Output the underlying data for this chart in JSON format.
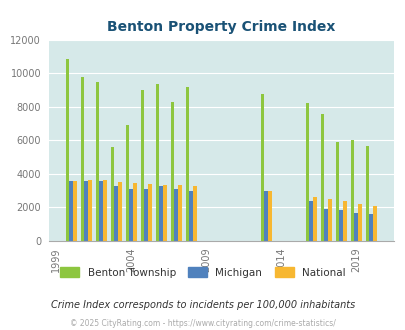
{
  "title": "Benton Property Crime Index",
  "title_color": "#1a5276",
  "subtitle": "Crime Index corresponds to incidents per 100,000 inhabitants",
  "footer": "© 2025 CityRating.com - https://www.cityrating.com/crime-statistics/",
  "years": [
    2000,
    2001,
    2002,
    2003,
    2004,
    2005,
    2006,
    2007,
    2008,
    2013,
    2016,
    2017,
    2018,
    2019,
    2020
  ],
  "benton": [
    10850,
    9800,
    9480,
    5600,
    6880,
    9000,
    9380,
    8300,
    9150,
    8750,
    8200,
    7580,
    5880,
    6000,
    5650
  ],
  "michigan": [
    3580,
    3580,
    3550,
    3280,
    3100,
    3090,
    3280,
    3080,
    2980,
    2950,
    2350,
    1920,
    1820,
    1640,
    1600
  ],
  "national": [
    3600,
    3650,
    3630,
    3510,
    3470,
    3390,
    3340,
    3310,
    3250,
    2960,
    2620,
    2480,
    2390,
    2200,
    2080
  ],
  "benton_color": "#8dc63f",
  "michigan_color": "#4f81bd",
  "national_color": "#f7b731",
  "plot_bg": "#d6e9e9",
  "ylim": [
    0,
    12000
  ],
  "yticks": [
    0,
    2000,
    4000,
    6000,
    8000,
    10000,
    12000
  ],
  "bar_width": 0.25,
  "figsize": [
    4.06,
    3.3
  ],
  "dpi": 100
}
